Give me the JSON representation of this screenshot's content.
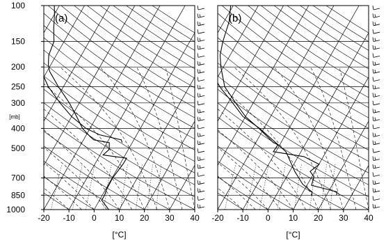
{
  "chart_data": [
    {
      "type": "skew-T",
      "panel_label": "(a)",
      "xlabel": "[°C]",
      "ylabel": "[mb]",
      "x_ticks": [
        -20,
        -10,
        0,
        10,
        20,
        30,
        40
      ],
      "y_ticks": [
        100,
        150,
        200,
        250,
        300,
        400,
        500,
        700,
        850,
        1000
      ],
      "y_scale": "log",
      "xlim": [
        -20,
        40
      ],
      "ylim": [
        1000,
        100
      ],
      "series": [
        {
          "values": [
            [
              1000,
              5.8
            ],
            [
              900,
              0.9
            ],
            [
              850,
              0.9
            ],
            [
              800,
              0.4
            ],
            [
              700,
              0.2
            ],
            [
              600,
              1.2
            ],
            [
              560,
              1.3
            ],
            [
              540,
              -8.8
            ],
            [
              510,
              -7.7
            ],
            [
              500,
              -7.9
            ],
            [
              470,
              -9.1
            ],
            [
              455,
              -15.9
            ],
            [
              440,
              -18.0
            ],
            [
              400,
              -23.0
            ],
            [
              350,
              -28.0
            ],
            [
              300,
              -34.0
            ],
            [
              250,
              -42.0
            ],
            [
              210,
              -49.0
            ],
            [
              195,
              -51.0
            ],
            [
              175,
              -53.0
            ],
            [
              150,
              -54.0
            ],
            [
              130,
              -57.0
            ],
            [
              110,
              -60.0
            ],
            [
              100,
              -62.0
            ]
          ]
        },
        {
          "values": [
            [
              470,
              -4.0
            ],
            [
              455,
              -5.0
            ],
            [
              430,
              -14.7
            ],
            [
              400,
              -21.6
            ],
            [
              350,
              -30.0
            ],
            [
              300,
              -37.7
            ],
            [
              250,
              -46.0
            ],
            [
              200,
              -54.0
            ],
            [
              175,
              -57.0
            ],
            [
              150,
              -64.2
            ],
            [
              120,
              -69.0
            ]
          ]
        }
      ]
    },
    {
      "type": "skew-T",
      "panel_label": "(b)",
      "xlabel": "[°C]",
      "x_ticks": [
        -20,
        -10,
        0,
        10,
        20,
        30,
        40
      ],
      "y_ticks": [
        100,
        150,
        200,
        250,
        300,
        400,
        500,
        700,
        850,
        1000
      ],
      "y_scale": "log",
      "xlim": [
        -20,
        40
      ],
      "ylim": [
        1000,
        100
      ],
      "series": [
        {
          "values": [
            [
              850,
              24.0
            ],
            [
              820,
              23.5
            ],
            [
              800,
              19.9
            ],
            [
              760,
              11.8
            ],
            [
              690,
              10.8
            ],
            [
              650,
              8.1
            ],
            [
              600,
              10.1
            ],
            [
              550,
              2.3
            ],
            [
              520,
              -11.0
            ],
            [
              480,
              -10.7
            ],
            [
              470,
              -13.0
            ],
            [
              400,
              -22.0
            ],
            [
              350,
              -30.0
            ],
            [
              300,
              -37.0
            ],
            [
              250,
              -45.0
            ],
            [
              200,
              -51.0
            ],
            [
              175,
              -54.0
            ],
            [
              150,
              -56.0
            ],
            [
              120,
              -58.0
            ],
            [
              100,
              -61.0
            ]
          ]
        },
        {
          "values": [
            [
              850,
              14.2
            ],
            [
              820,
              13.5
            ],
            [
              750,
              8.0
            ],
            [
              650,
              2.0
            ],
            [
              520,
              -6.0
            ],
            [
              400,
              -21.7
            ],
            [
              350,
              -31.0
            ],
            [
              300,
              -38.2
            ],
            [
              250,
              -47.0
            ],
            [
              210,
              -53.7
            ],
            [
              190,
              -57.0
            ],
            [
              170,
              -61.0
            ],
            [
              150,
              -66.0
            ],
            [
              120,
              -72.0
            ]
          ]
        }
      ]
    }
  ]
}
